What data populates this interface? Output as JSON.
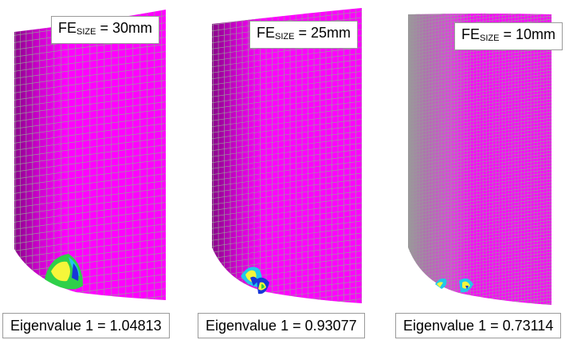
{
  "panels": [
    {
      "fe_prefix": "FE",
      "fe_sub": "SIZE",
      "fe_value": " = 30mm",
      "eigen_text": "Eigenvalue 1 = 1.04813",
      "mesh_density": 30
    },
    {
      "fe_prefix": "FE",
      "fe_sub": "SIZE",
      "fe_value": " = 25mm",
      "eigen_text": "Eigenvalue 1 = 0.93077",
      "mesh_density": 36
    },
    {
      "fe_prefix": "FE",
      "fe_sub": "SIZE",
      "fe_value": " = 10mm",
      "eigen_text": "Eigenvalue 1 = 0.73114",
      "mesh_density": 80
    }
  ],
  "colors": {
    "shell": "#ff00ff",
    "shell_dark": "#8a008a",
    "mesh": "#9a9a9a",
    "buckle_green": "#2fd04a",
    "buckle_yellow": "#f6f63a",
    "buckle_cyan": "#22c8e8",
    "buckle_blue": "#1836d8"
  }
}
